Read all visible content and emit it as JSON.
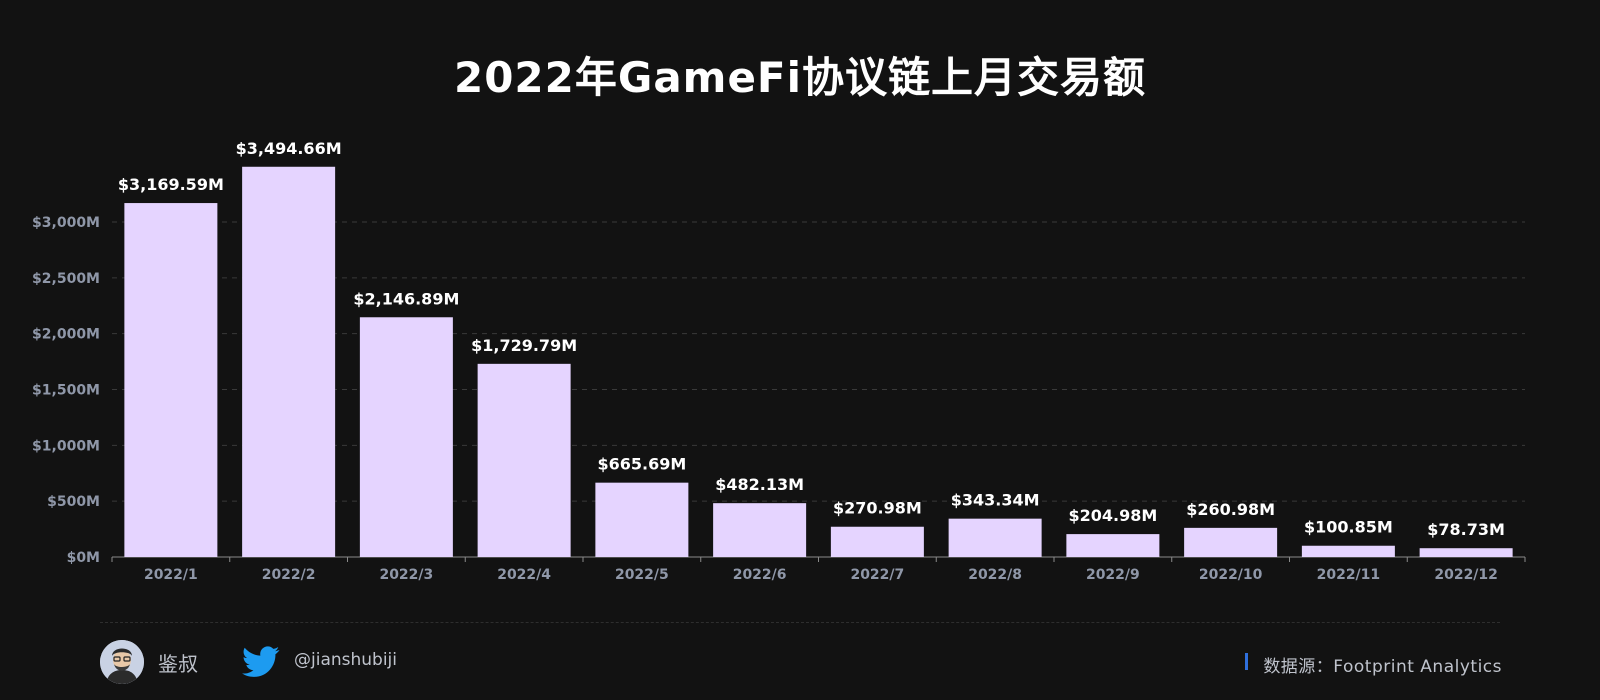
{
  "title": "2022年GameFi协议链上月交易额",
  "chart_data": {
    "type": "bar",
    "categories": [
      "2022/1",
      "2022/2",
      "2022/3",
      "2022/4",
      "2022/5",
      "2022/6",
      "2022/7",
      "2022/8",
      "2022/9",
      "2022/10",
      "2022/11",
      "2022/12"
    ],
    "values": [
      3169.59,
      3494.66,
      2146.89,
      1729.79,
      665.69,
      482.13,
      270.98,
      343.34,
      204.98,
      260.98,
      100.85,
      78.73
    ],
    "data_labels": [
      "$3,169.59M",
      "$3,494.66M",
      "$2,146.89M",
      "$1,729.79M",
      "$665.69M",
      "$482.13M",
      "$270.98M",
      "$343.34M",
      "$204.98M",
      "$260.98M",
      "$100.85M",
      "$78.73M"
    ],
    "y_ticks": [
      0,
      500,
      1000,
      1500,
      2000,
      2500,
      3000
    ],
    "y_tick_labels": [
      "$0M",
      "$500M",
      "$1,000M",
      "$1,500M",
      "$2,000M",
      "$2,500M",
      "$3,000M"
    ],
    "ylim": [
      0,
      3500
    ],
    "grid": true,
    "bar_color": "#e5d4ff"
  },
  "footer": {
    "author": "鉴叔",
    "handle": "@jianshubiji",
    "source": "数据源：Footprint  Analytics"
  },
  "colors": {
    "background": "#121212",
    "twitter": "#1d9bf0",
    "accent": "#2f6fdc"
  }
}
